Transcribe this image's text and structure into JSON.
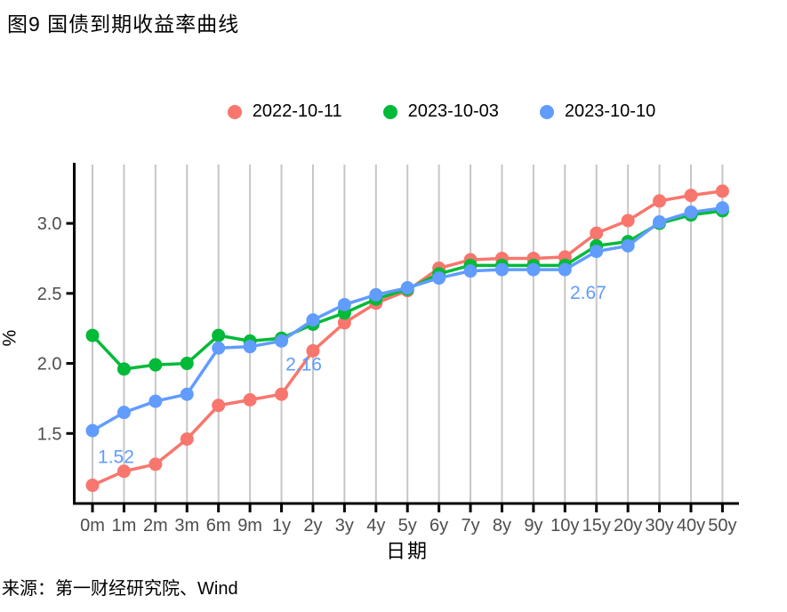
{
  "page": {
    "title": "图9 国债到期收益率曲线",
    "source": "来源：第一财经研究院、Wind"
  },
  "chart_data": {
    "type": "line",
    "title": "图9 国债到期收益率曲线",
    "xlabel": "日期",
    "ylabel": "%",
    "grid": "vertical-only",
    "legend_position": "top",
    "categories": [
      "0m",
      "1m",
      "2m",
      "3m",
      "6m",
      "9m",
      "1y",
      "2y",
      "3y",
      "4y",
      "5y",
      "6y",
      "7y",
      "8y",
      "9y",
      "10y",
      "15y",
      "20y",
      "30y",
      "40y",
      "50y"
    ],
    "y_ticks": [
      1.5,
      2.0,
      2.5,
      3.0
    ],
    "ylim": [
      1.0,
      3.42
    ],
    "axis_colors": {
      "tick_label": "#4d4d4d",
      "axis_line": "#000000",
      "gridline": "#c6c6c6"
    },
    "series": [
      {
        "name": "2022-10-11",
        "color": "#F8766D",
        "values": [
          1.13,
          1.23,
          1.28,
          1.46,
          1.7,
          1.74,
          1.78,
          2.09,
          2.29,
          2.43,
          2.52,
          2.68,
          2.74,
          2.75,
          2.75,
          2.76,
          2.93,
          3.02,
          3.16,
          3.2,
          3.23
        ]
      },
      {
        "name": "2023-10-03",
        "color": "#00BA38",
        "values": [
          2.2,
          1.96,
          1.99,
          2.0,
          2.2,
          2.16,
          2.18,
          2.28,
          2.36,
          2.46,
          2.53,
          2.64,
          2.7,
          2.7,
          2.7,
          2.7,
          2.84,
          2.87,
          3.0,
          3.06,
          3.09
        ]
      },
      {
        "name": "2023-10-10",
        "color": "#619CFF",
        "values": [
          1.52,
          1.65,
          1.73,
          1.78,
          2.11,
          2.12,
          2.16,
          2.31,
          2.42,
          2.49,
          2.54,
          2.61,
          2.66,
          2.67,
          2.67,
          2.67,
          2.8,
          2.84,
          3.01,
          3.08,
          3.11
        ]
      }
    ],
    "annotations": [
      {
        "text": "1.52",
        "x_index": 0.17,
        "y_value": 1.29,
        "color": "#619CFF"
      },
      {
        "text": "2.16",
        "x_index": 6.13,
        "y_value": 1.95,
        "color": "#619CFF"
      },
      {
        "text": "2.67",
        "x_index": 15.16,
        "y_value": 2.46,
        "color": "#619CFF"
      }
    ]
  }
}
